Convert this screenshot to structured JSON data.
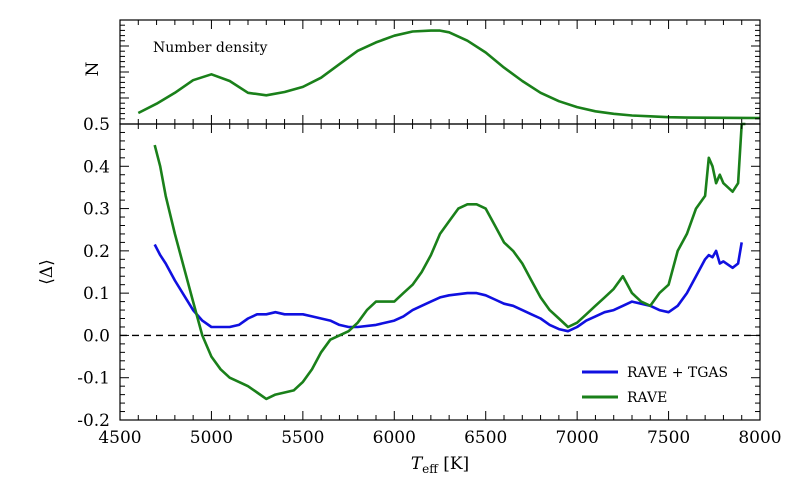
{
  "chart_data": [
    {
      "type": "line",
      "panel": "top",
      "ylabel": "N",
      "annotation": "Number density",
      "xlim": [
        4500,
        8000
      ],
      "ylim": [
        0,
        1
      ],
      "series": [
        {
          "name": "RAVE",
          "color": "#1a801a",
          "x": [
            4600,
            4700,
            4800,
            4900,
            5000,
            5100,
            5200,
            5300,
            5400,
            5500,
            5600,
            5700,
            5800,
            5900,
            6000,
            6100,
            6200,
            6250,
            6300,
            6400,
            6500,
            6600,
            6700,
            6800,
            6900,
            7000,
            7100,
            7200,
            7300,
            7400,
            7500,
            7600,
            7700,
            7800,
            7900,
            8000
          ],
          "y": [
            0.06,
            0.17,
            0.3,
            0.45,
            0.52,
            0.44,
            0.3,
            0.27,
            0.31,
            0.37,
            0.48,
            0.64,
            0.8,
            0.9,
            0.98,
            1.03,
            1.04,
            1.04,
            1.02,
            0.92,
            0.78,
            0.6,
            0.44,
            0.3,
            0.2,
            0.13,
            0.08,
            0.05,
            0.03,
            0.02,
            0.01,
            0.005,
            0.003,
            0.002,
            0.001,
            0.0
          ]
        }
      ]
    },
    {
      "type": "line",
      "panel": "bottom",
      "xlabel": "T_eff [K]",
      "ylabel": "⟨Δ⟩",
      "xlim": [
        4500,
        8000
      ],
      "ylim": [
        -0.2,
        0.5
      ],
      "xticks": [
        4500,
        5000,
        5500,
        6000,
        6500,
        7000,
        7500,
        8000
      ],
      "yticks": [
        -0.2,
        -0.1,
        0.0,
        0.1,
        0.2,
        0.3,
        0.4,
        0.5
      ],
      "hline": 0.0,
      "legend_position": "lower-right",
      "series": [
        {
          "name": "RAVE + TGAS",
          "color": "#1010e0",
          "x": [
            4690,
            4720,
            4750,
            4800,
            4850,
            4900,
            4950,
            5000,
            5050,
            5100,
            5150,
            5200,
            5250,
            5300,
            5350,
            5400,
            5450,
            5500,
            5550,
            5600,
            5650,
            5700,
            5750,
            5800,
            5900,
            6000,
            6050,
            6100,
            6150,
            6200,
            6250,
            6300,
            6400,
            6450,
            6500,
            6550,
            6600,
            6650,
            6700,
            6750,
            6800,
            6850,
            6900,
            6950,
            7000,
            7050,
            7100,
            7150,
            7200,
            7250,
            7300,
            7350,
            7400,
            7450,
            7500,
            7550,
            7600,
            7650,
            7700,
            7720,
            7740,
            7760,
            7780,
            7800,
            7850,
            7880,
            7900
          ],
          "y": [
            0.215,
            0.19,
            0.17,
            0.13,
            0.095,
            0.06,
            0.035,
            0.02,
            0.02,
            0.02,
            0.025,
            0.04,
            0.05,
            0.05,
            0.055,
            0.05,
            0.05,
            0.05,
            0.045,
            0.04,
            0.035,
            0.025,
            0.02,
            0.02,
            0.025,
            0.035,
            0.045,
            0.06,
            0.07,
            0.08,
            0.09,
            0.095,
            0.1,
            0.1,
            0.095,
            0.085,
            0.075,
            0.07,
            0.06,
            0.05,
            0.04,
            0.025,
            0.015,
            0.01,
            0.02,
            0.035,
            0.045,
            0.055,
            0.06,
            0.07,
            0.08,
            0.075,
            0.07,
            0.06,
            0.055,
            0.07,
            0.1,
            0.14,
            0.18,
            0.19,
            0.185,
            0.2,
            0.17,
            0.175,
            0.16,
            0.17,
            0.22
          ]
        },
        {
          "name": "RAVE",
          "color": "#1a801a",
          "x": [
            4690,
            4720,
            4750,
            4800,
            4850,
            4900,
            4950,
            5000,
            5050,
            5100,
            5150,
            5200,
            5250,
            5300,
            5350,
            5400,
            5450,
            5500,
            5550,
            5600,
            5650,
            5700,
            5750,
            5800,
            5850,
            5900,
            5950,
            6000,
            6050,
            6100,
            6150,
            6200,
            6250,
            6300,
            6350,
            6400,
            6450,
            6500,
            6550,
            6600,
            6650,
            6700,
            6750,
            6800,
            6850,
            6900,
            6950,
            7000,
            7050,
            7100,
            7150,
            7200,
            7250,
            7300,
            7350,
            7400,
            7450,
            7500,
            7550,
            7600,
            7650,
            7700,
            7720,
            7740,
            7760,
            7780,
            7800,
            7850,
            7880,
            7900,
            7920
          ],
          "y": [
            0.45,
            0.4,
            0.33,
            0.24,
            0.16,
            0.08,
            0.0,
            -0.05,
            -0.08,
            -0.1,
            -0.11,
            -0.12,
            -0.135,
            -0.15,
            -0.14,
            -0.135,
            -0.13,
            -0.11,
            -0.08,
            -0.04,
            -0.01,
            0.0,
            0.01,
            0.03,
            0.06,
            0.08,
            0.08,
            0.08,
            0.1,
            0.12,
            0.15,
            0.19,
            0.24,
            0.27,
            0.3,
            0.31,
            0.31,
            0.3,
            0.26,
            0.22,
            0.2,
            0.17,
            0.13,
            0.09,
            0.06,
            0.04,
            0.02,
            0.03,
            0.05,
            0.07,
            0.09,
            0.11,
            0.14,
            0.1,
            0.08,
            0.07,
            0.1,
            0.12,
            0.2,
            0.24,
            0.3,
            0.33,
            0.42,
            0.4,
            0.36,
            0.38,
            0.36,
            0.34,
            0.36,
            0.5,
            0.5
          ]
        }
      ]
    }
  ]
}
